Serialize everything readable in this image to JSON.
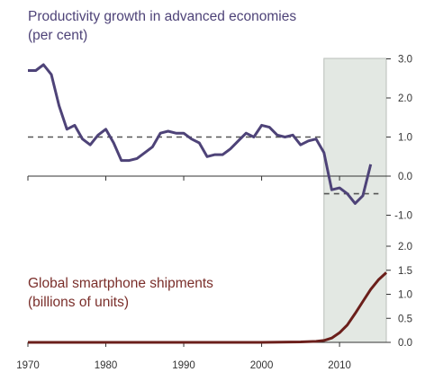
{
  "chart_data": [
    {
      "type": "line",
      "title": "Productivity growth in advanced economies",
      "subtitle": "(per cent)",
      "xlim": [
        1970,
        2016
      ],
      "ylim": [
        -1.0,
        3.0
      ],
      "yticks": [
        "3.0",
        "2.0",
        "1.0",
        "0.0",
        "-1.0"
      ],
      "yaxis_side": "right",
      "grid": false,
      "shaded_region": [
        2008,
        2016
      ],
      "x": [
        1970,
        1971,
        1972,
        1973,
        1974,
        1975,
        1976,
        1977,
        1978,
        1979,
        1980,
        1981,
        1982,
        1983,
        1984,
        1985,
        1986,
        1987,
        1988,
        1989,
        1990,
        1991,
        1992,
        1993,
        1994,
        1995,
        1996,
        1997,
        1998,
        1999,
        2000,
        2001,
        2002,
        2003,
        2004,
        2005,
        2006,
        2007,
        2008,
        2009,
        2010,
        2011,
        2012,
        2013,
        2014,
        2015
      ],
      "values": [
        2.7,
        2.7,
        2.85,
        2.6,
        1.8,
        1.2,
        1.3,
        0.95,
        0.8,
        1.05,
        1.2,
        0.85,
        0.4,
        0.4,
        0.45,
        0.6,
        0.75,
        1.1,
        1.15,
        1.1,
        1.1,
        0.95,
        0.85,
        0.5,
        0.55,
        0.55,
        0.7,
        0.9,
        1.1,
        1.0,
        1.3,
        1.25,
        1.05,
        1.0,
        1.05,
        0.8,
        0.9,
        0.95,
        0.6,
        -0.35,
        -0.3,
        -0.45,
        -0.7,
        -0.5,
        0.3,
        null
      ],
      "reference_lines": [
        {
          "from": 1970,
          "to": 2008,
          "value": 1.0
        },
        {
          "from": 2008,
          "to": 2015,
          "value": -0.45
        }
      ],
      "colors": {
        "line": "#4e4378",
        "reference": "#555555",
        "shade": "#e3e8e3"
      }
    },
    {
      "type": "line",
      "title": "Global smartphone shipments",
      "subtitle": "(billions of units)",
      "xlim": [
        1970,
        2016
      ],
      "ylim": [
        0.0,
        2.0
      ],
      "yticks": [
        "2.0",
        "1.5",
        "1.0",
        "0.5",
        "0.0"
      ],
      "yaxis_side": "right",
      "xticks": [
        "1970",
        "1980",
        "1990",
        "2000",
        "2010"
      ],
      "grid": false,
      "x": [
        1970,
        2000,
        2005,
        2007,
        2008,
        2009,
        2010,
        2011,
        2012,
        2013,
        2014,
        2015,
        2016
      ],
      "values": [
        0.0,
        0.0,
        0.01,
        0.02,
        0.04,
        0.09,
        0.2,
        0.36,
        0.6,
        0.85,
        1.1,
        1.3,
        1.45
      ],
      "colors": {
        "line": "#6b1f1b"
      }
    }
  ]
}
